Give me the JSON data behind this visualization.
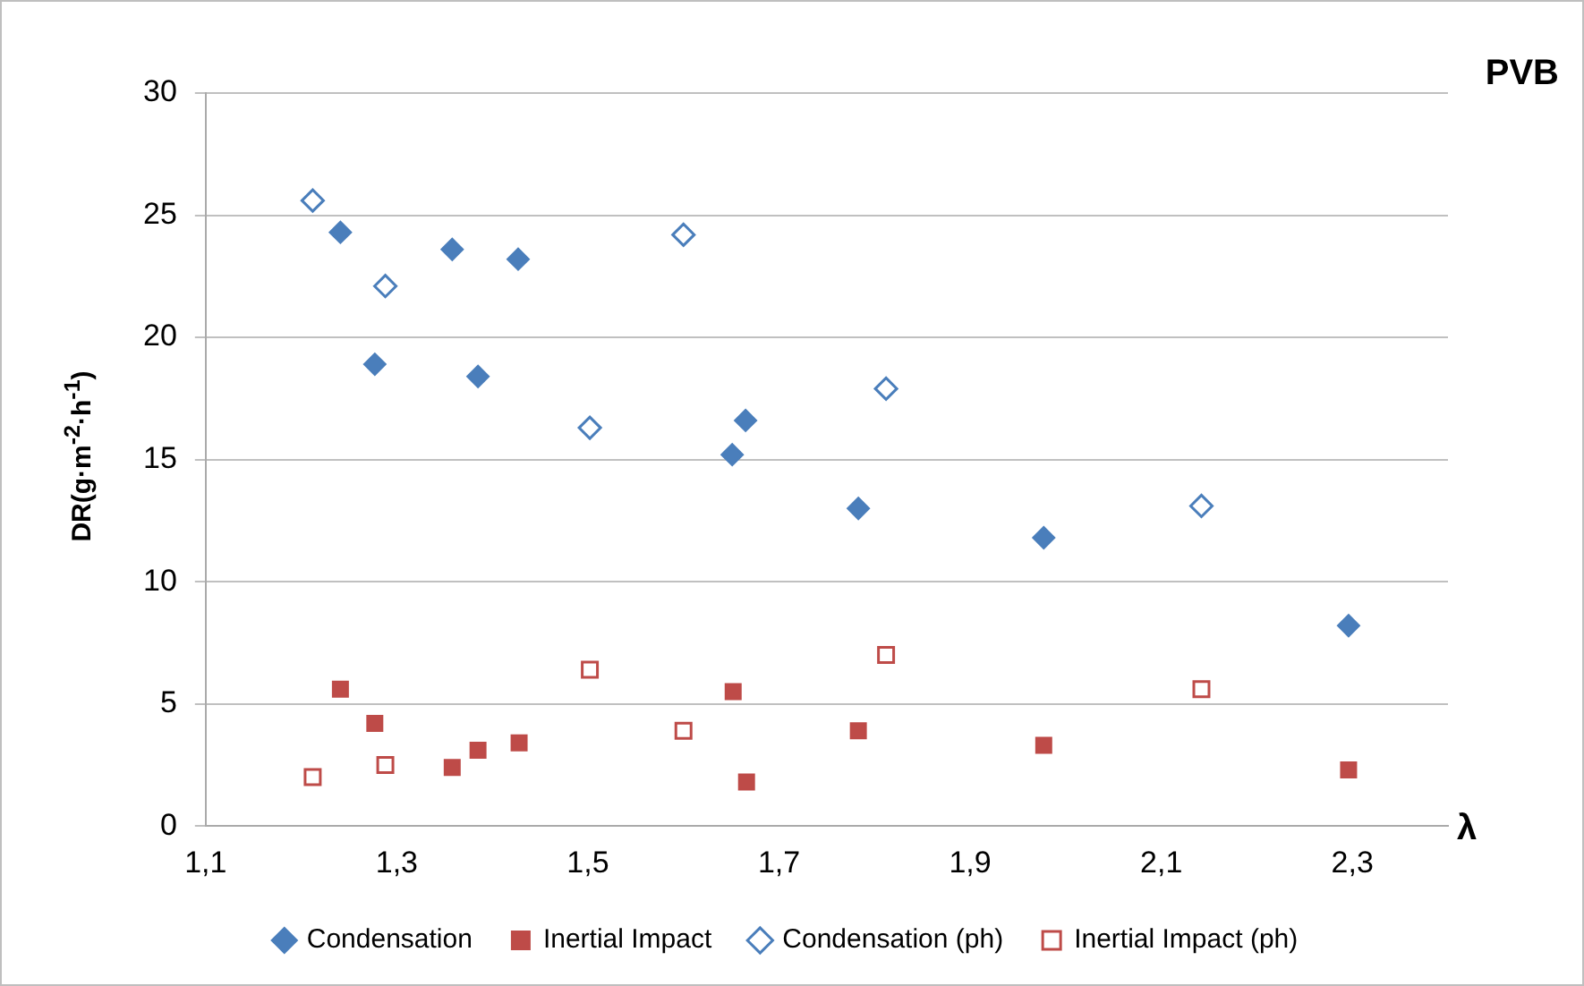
{
  "chart_data": {
    "type": "scatter",
    "title": "PVB",
    "xlabel": "λ",
    "ylabel": "DR(g·m$^{-2}$·h$^{-1}$)",
    "xlim": [
      1.1,
      2.4
    ],
    "xticks": [
      {
        "value": 1.1,
        "label": "1,1"
      },
      {
        "value": 1.3,
        "label": "1,3"
      },
      {
        "value": 1.5,
        "label": "1,5"
      },
      {
        "value": 1.7,
        "label": "1,7"
      },
      {
        "value": 1.9,
        "label": "1,9"
      },
      {
        "value": 2.1,
        "label": "2,1"
      },
      {
        "value": 2.3,
        "label": "2,3"
      }
    ],
    "ylim": [
      0,
      30
    ],
    "yticks": [
      0,
      5,
      10,
      15,
      20,
      25,
      30
    ],
    "grid": "y",
    "legend": "bottom",
    "series": [
      {
        "name": "Condensation",
        "color": "#4a7ebb",
        "marker": "diamond",
        "x": [
          1.241,
          1.277,
          1.358,
          1.385,
          1.427,
          1.651,
          1.665,
          1.783,
          1.977,
          2.296
        ],
        "values": [
          24.3,
          18.9,
          23.6,
          18.4,
          23.2,
          15.2,
          16.6,
          13.0,
          11.8,
          8.2
        ]
      },
      {
        "name": "Inertial Impact",
        "color": "#be4b48",
        "marker": "square",
        "x": [
          1.241,
          1.277,
          1.358,
          1.385,
          1.428,
          1.652,
          1.666,
          1.783,
          1.977,
          2.296
        ],
        "values": [
          5.6,
          4.2,
          2.4,
          3.1,
          3.4,
          5.5,
          1.8,
          3.9,
          3.3,
          2.3
        ]
      },
      {
        "name": "Condensation (ph)",
        "color": "#4a7ebb",
        "marker": "diamond",
        "x": [
          1.212,
          1.288,
          1.502,
          1.6,
          1.812,
          2.142
        ],
        "values": [
          25.6,
          22.1,
          16.3,
          24.2,
          17.9,
          13.1
        ]
      },
      {
        "name": "Inertial Impact (ph)",
        "color": "#be4b48",
        "marker": "square",
        "x": [
          1.212,
          1.288,
          1.502,
          1.6,
          1.812,
          2.142
        ],
        "values": [
          2.0,
          2.5,
          6.4,
          3.9,
          7.0,
          5.6
        ]
      }
    ]
  }
}
